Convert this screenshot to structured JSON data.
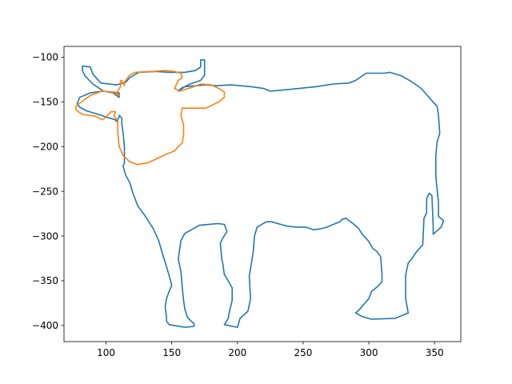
{
  "chart_data": {
    "type": "line",
    "title": "",
    "xlabel": "",
    "ylabel": "",
    "xlim": [
      68,
      370
    ],
    "ylim": [
      -418,
      -88
    ],
    "grid": false,
    "x_ticks": [
      100,
      150,
      200,
      250,
      300,
      350
    ],
    "y_ticks": [
      -100,
      -150,
      -200,
      -250,
      -300,
      -350,
      -400
    ],
    "x_tick_labels": [
      "100",
      "150",
      "200",
      "250",
      "300",
      "350"
    ],
    "y_tick_labels": [
      "−100",
      "−150",
      "−200",
      "−250",
      "−300",
      "−350",
      "−400"
    ],
    "series": [
      {
        "color": "#1f77b4",
        "points": [
          [
            82,
            -110
          ],
          [
            88,
            -111
          ],
          [
            90,
            -119
          ],
          [
            96,
            -129
          ],
          [
            108,
            -131
          ],
          [
            115,
            -128
          ],
          [
            118,
            -123
          ],
          [
            125,
            -117
          ],
          [
            138,
            -116
          ],
          [
            148,
            -117
          ],
          [
            160,
            -117
          ],
          [
            168,
            -115
          ],
          [
            172,
            -111
          ],
          [
            172,
            -103
          ],
          [
            175,
            -103
          ],
          [
            175,
            -120
          ],
          [
            172,
            -126
          ],
          [
            164,
            -130
          ],
          [
            157,
            -135
          ],
          [
            155,
            -138
          ],
          [
            160,
            -133
          ],
          [
            168,
            -132
          ],
          [
            176,
            -131
          ],
          [
            184,
            -132
          ],
          [
            195,
            -131
          ],
          [
            210,
            -133
          ],
          [
            220,
            -135
          ],
          [
            225,
            -138
          ],
          [
            240,
            -136
          ],
          [
            260,
            -133
          ],
          [
            273,
            -130
          ],
          [
            285,
            -129
          ],
          [
            290,
            -126
          ],
          [
            298,
            -118
          ],
          [
            312,
            -118
          ],
          [
            316,
            -117
          ],
          [
            325,
            -121
          ],
          [
            332,
            -127
          ],
          [
            340,
            -135
          ],
          [
            347,
            -147
          ],
          [
            352,
            -155
          ],
          [
            353,
            -165
          ],
          [
            354,
            -185
          ],
          [
            352,
            -195
          ],
          [
            351,
            -210
          ],
          [
            351,
            -233
          ],
          [
            352,
            -248
          ],
          [
            353,
            -262
          ],
          [
            353,
            -278
          ],
          [
            357,
            -283
          ],
          [
            355,
            -290
          ],
          [
            349,
            -298
          ],
          [
            349,
            -289
          ],
          [
            348,
            -255
          ],
          [
            346,
            -252
          ],
          [
            344,
            -258
          ],
          [
            344,
            -274
          ],
          [
            342,
            -280
          ],
          [
            341,
            -310
          ],
          [
            336,
            -318
          ],
          [
            333,
            -325
          ],
          [
            330,
            -330
          ],
          [
            328,
            -344
          ],
          [
            328,
            -370
          ],
          [
            329,
            -378
          ],
          [
            330,
            -386
          ],
          [
            325,
            -389
          ],
          [
            320,
            -392
          ],
          [
            302,
            -393
          ],
          [
            295,
            -390
          ],
          [
            290,
            -386
          ],
          [
            293,
            -382
          ],
          [
            297,
            -375
          ],
          [
            300,
            -370
          ],
          [
            302,
            -362
          ],
          [
            307,
            -356
          ],
          [
            310,
            -351
          ],
          [
            310,
            -343
          ],
          [
            309,
            -323
          ],
          [
            306,
            -317
          ],
          [
            303,
            -314
          ],
          [
            300,
            -306
          ],
          [
            295,
            -298
          ],
          [
            292,
            -291
          ],
          [
            287,
            -285
          ],
          [
            284,
            -282
          ],
          [
            283,
            -280
          ],
          [
            280,
            -281
          ],
          [
            278,
            -284
          ],
          [
            273,
            -287
          ],
          [
            268,
            -290
          ],
          [
            263,
            -292
          ],
          [
            258,
            -293
          ],
          [
            252,
            -290
          ],
          [
            245,
            -290
          ],
          [
            238,
            -289
          ],
          [
            233,
            -287
          ],
          [
            226,
            -284
          ],
          [
            222,
            -284
          ],
          [
            215,
            -290
          ],
          [
            213,
            -300
          ],
          [
            212,
            -318
          ],
          [
            209,
            -345
          ],
          [
            210,
            -370
          ],
          [
            208,
            -384
          ],
          [
            205,
            -388
          ],
          [
            202,
            -392
          ],
          [
            200,
            -402
          ],
          [
            190,
            -399
          ],
          [
            193,
            -392
          ],
          [
            194,
            -384
          ],
          [
            196,
            -372
          ],
          [
            196,
            -358
          ],
          [
            193,
            -350
          ],
          [
            190,
            -343
          ],
          [
            189,
            -332
          ],
          [
            188,
            -325
          ],
          [
            187,
            -308
          ],
          [
            189,
            -302
          ],
          [
            192,
            -295
          ],
          [
            190,
            -287
          ],
          [
            185,
            -286
          ],
          [
            171,
            -288
          ],
          [
            165,
            -293
          ],
          [
            160,
            -297
          ],
          [
            157,
            -305
          ],
          [
            156,
            -315
          ],
          [
            155,
            -326
          ],
          [
            157,
            -340
          ],
          [
            158,
            -357
          ],
          [
            159,
            -372
          ],
          [
            160,
            -382
          ],
          [
            162,
            -391
          ],
          [
            164,
            -394
          ],
          [
            167,
            -398
          ],
          [
            167,
            -401
          ],
          [
            160,
            -402
          ],
          [
            148,
            -399
          ],
          [
            146,
            -395
          ],
          [
            146,
            -390
          ],
          [
            145,
            -379
          ],
          [
            146,
            -370
          ],
          [
            148,
            -362
          ],
          [
            150,
            -355
          ],
          [
            148,
            -344
          ],
          [
            146,
            -334
          ],
          [
            143,
            -320
          ],
          [
            140,
            -305
          ],
          [
            136,
            -292
          ],
          [
            130,
            -278
          ],
          [
            124,
            -266
          ],
          [
            120,
            -250
          ],
          [
            118,
            -240
          ],
          [
            115,
            -232
          ],
          [
            113,
            -222
          ],
          [
            114,
            -218
          ],
          [
            114,
            -200
          ],
          [
            113,
            -185
          ],
          [
            112,
            -175
          ],
          [
            112,
            -168
          ],
          [
            110,
            -165
          ],
          [
            110,
            -167
          ],
          [
            108,
            -172
          ],
          [
            107,
            -170
          ],
          [
            100,
            -167
          ],
          [
            92,
            -163
          ],
          [
            85,
            -160
          ],
          [
            80,
            -156
          ],
          [
            78,
            -152
          ],
          [
            80,
            -145
          ],
          [
            88,
            -140
          ],
          [
            98,
            -138
          ],
          [
            110,
            -140
          ],
          [
            110,
            -145
          ],
          [
            105,
            -140
          ],
          [
            98,
            -138
          ],
          [
            90,
            -130
          ],
          [
            84,
            -121
          ],
          [
            82,
            -115
          ],
          [
            82,
            -110
          ]
        ]
      },
      {
        "color": "#ff7f0e",
        "points": [
          [
            156,
            -138
          ],
          [
            165,
            -134
          ],
          [
            172,
            -130
          ],
          [
            180,
            -131
          ],
          [
            186,
            -135
          ],
          [
            190,
            -139
          ],
          [
            190,
            -145
          ],
          [
            186,
            -150
          ],
          [
            176,
            -157
          ],
          [
            166,
            -157
          ],
          [
            158,
            -157
          ],
          [
            157,
            -165
          ],
          [
            159,
            -176
          ],
          [
            159,
            -187
          ],
          [
            158,
            -196
          ],
          [
            155,
            -200
          ],
          [
            152,
            -205
          ],
          [
            145,
            -209
          ],
          [
            138,
            -214
          ],
          [
            132,
            -218
          ],
          [
            124,
            -220
          ],
          [
            118,
            -217
          ],
          [
            113,
            -210
          ],
          [
            110,
            -200
          ],
          [
            109,
            -185
          ],
          [
            109,
            -171
          ],
          [
            106,
            -166
          ],
          [
            107,
            -161
          ],
          [
            104,
            -161
          ],
          [
            99,
            -168
          ],
          [
            97,
            -170
          ],
          [
            92,
            -166
          ],
          [
            82,
            -164
          ],
          [
            77,
            -159
          ],
          [
            77,
            -155
          ],
          [
            84,
            -147
          ],
          [
            88,
            -143
          ],
          [
            97,
            -138
          ],
          [
            104,
            -139
          ],
          [
            110,
            -143
          ],
          [
            108,
            -140
          ],
          [
            111,
            -133
          ],
          [
            111,
            -126
          ],
          [
            112,
            -126
          ],
          [
            114,
            -132
          ],
          [
            114,
            -128
          ],
          [
            118,
            -120
          ],
          [
            122,
            -117
          ],
          [
            135,
            -116
          ],
          [
            145,
            -115
          ],
          [
            152,
            -116
          ],
          [
            157,
            -118
          ],
          [
            158,
            -123
          ],
          [
            155,
            -126
          ],
          [
            152,
            -135
          ],
          [
            155,
            -137
          ]
        ]
      }
    ]
  }
}
